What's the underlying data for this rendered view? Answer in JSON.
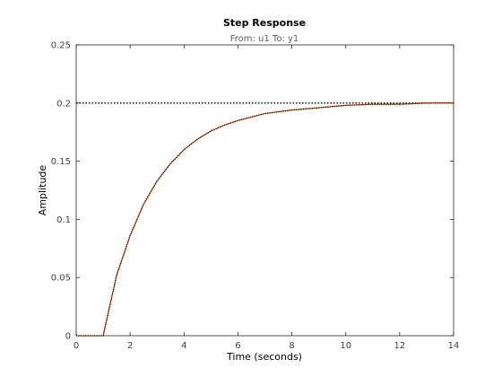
{
  "chart_data": {
    "type": "line",
    "title": "Step Response",
    "subtitle": "From: u1  To: y1",
    "xlabel": "Time (seconds)",
    "ylabel": "Amplitude",
    "xlim": [
      0,
      14
    ],
    "ylim": [
      0,
      0.25
    ],
    "xticks": [
      0,
      2,
      4,
      6,
      8,
      10,
      12,
      14
    ],
    "yticks": [
      0,
      0.05,
      0.1,
      0.15,
      0.2,
      0.25
    ],
    "xtick_labels": [
      "0",
      "2",
      "4",
      "6",
      "8",
      "10",
      "12",
      "14"
    ],
    "ytick_labels": [
      "0",
      "0.05",
      "0.1",
      "0.15",
      "0.2",
      "0.25"
    ],
    "grid": false,
    "legend": "none",
    "steady_state": {
      "y": 0.2,
      "style": "dotted",
      "color": "#000000"
    },
    "series": [
      {
        "color": "#D95319",
        "style": "solid",
        "x": [
          0,
          1,
          1.5,
          2,
          2.5,
          3,
          3.5,
          4,
          4.5,
          5,
          5.5,
          6,
          7,
          8,
          9,
          10,
          11,
          12,
          13,
          14
        ],
        "y": [
          0,
          0,
          0.052,
          0.086,
          0.113,
          0.133,
          0.148,
          0.16,
          0.169,
          0.176,
          0.181,
          0.185,
          0.191,
          0.194,
          0.196,
          0.198,
          0.199,
          0.199,
          0.2,
          0.2
        ]
      },
      {
        "color": "#000000",
        "style": "dotted",
        "x": [
          0,
          1,
          1.5,
          2,
          2.5,
          3,
          3.5,
          4,
          4.5,
          5,
          5.5,
          6,
          7,
          8,
          9,
          10,
          11,
          12,
          13,
          14
        ],
        "y": [
          0,
          0,
          0.052,
          0.086,
          0.113,
          0.133,
          0.148,
          0.16,
          0.169,
          0.176,
          0.181,
          0.185,
          0.191,
          0.194,
          0.196,
          0.198,
          0.199,
          0.199,
          0.2,
          0.2
        ]
      }
    ]
  }
}
